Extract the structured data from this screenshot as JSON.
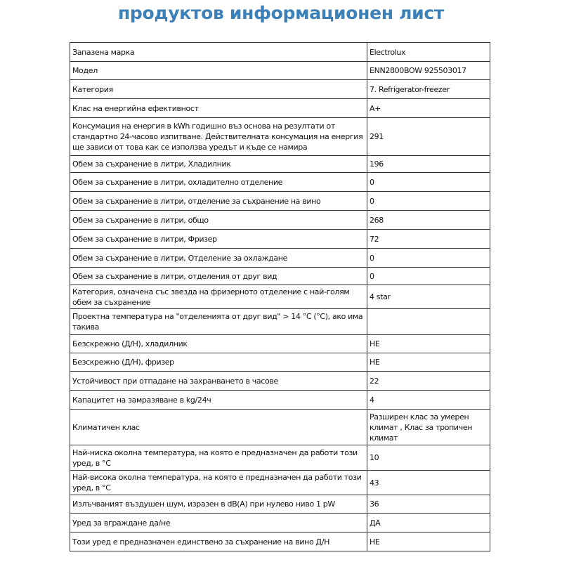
{
  "title": "продуктов информационен лист",
  "rows": [
    {
      "label": "Запазена марка",
      "value": "Electrolux"
    },
    {
      "label": "Модел",
      "value": "ENN2800BOW 925503017"
    },
    {
      "label": "Категория",
      "value": "7. Refrigerator-freezer"
    },
    {
      "label": "Клас на енергийна ефективност",
      "value": "A+"
    },
    {
      "label": "Консумация на енергия в kWh годишно въз основа на резултати от стандартно 24-часово изпитване. Действителната консумация на енергия ще зависи от това как се използва уредът и къде се намира",
      "value": "291"
    },
    {
      "label": "Обем за съхранение в литри, Хладилник",
      "value": "196"
    },
    {
      "label": "Обем за съхранение в литри, охладително отделение",
      "value": "0"
    },
    {
      "label": "Обем за съхранение в литри, отделение за съхранение на вино",
      "value": "0"
    },
    {
      "label": "Обем за съхранение в литри, общо",
      "value": "268"
    },
    {
      "label": "Обем за съхранение в литри, Фризер",
      "value": "72"
    },
    {
      "label": "Обем за съхранение в литри, Отделение за охлаждане",
      "value": "0"
    },
    {
      "label": "Обем за съхранение в литри, отделения от друг вид",
      "value": "0"
    },
    {
      "label": "Категория, означена със звезда на фризерното отделение с най-голям обем за съхранение",
      "value": "4 star"
    },
    {
      "label": "Проектна температура на \"отделенията от друг вид\" > 14 °C (°C), ако има такива",
      "value": ""
    },
    {
      "label": "Безскрежно (Д/Н), хладилник",
      "value": "НЕ"
    },
    {
      "label": "Безскрежно (Д/Н), фризер",
      "value": "НЕ"
    },
    {
      "label": "Устойчивост при отпадане на захранването в часове",
      "value": "22"
    },
    {
      "label": "Капацитет на замразяване в kg/24ч",
      "value": "4"
    },
    {
      "label": "Климатичен клас",
      "value": "Разширен клас за умерен климат , Клас за тропичен климат"
    },
    {
      "label": "Най-ниска околна температура, на която е предназначен да работи този уред, в °C",
      "value": "10"
    },
    {
      "label": "Най-висока околна температура, на която е предназначен да работи този уред, в °C",
      "value": "43"
    },
    {
      "label": "Излъчваният въздушен шум, изразен в dB(A)  при нулево ниво 1 pW",
      "value": "36"
    },
    {
      "label": "Уред за вграждане да/не",
      "value": "ДА"
    },
    {
      "label": "Този уред е предназначен единствено за съхранение на вино Д/Н",
      "value": "НЕ"
    }
  ]
}
